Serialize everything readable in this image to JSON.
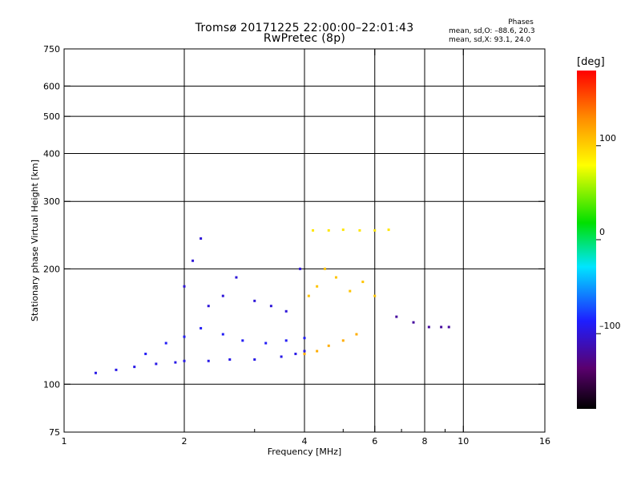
{
  "header": {
    "title_line1": "Tromsø 20171225 22:00:00–22:01:43",
    "title_line2": "RwPretec (8p)",
    "stats_title": "Phases",
    "stats_o": "mean, sd,O: –88.6, 20.3",
    "stats_x": "mean, sd,X:  93.1, 24.0"
  },
  "colorbar": {
    "unit_label": "[deg]",
    "range": [
      -180,
      180
    ],
    "tick_labels": [
      "100",
      "0",
      "–100"
    ],
    "tick_values": [
      100,
      0,
      -100
    ],
    "colormap": "rainbow (black-purple-blue-cyan-green-yellow-red)"
  },
  "chart_data": {
    "type": "scatter",
    "xlabel": "Frequency [MHz]",
    "ylabel": "Stationary phase Virtual Height [km]",
    "x_scale": "log",
    "y_scale": "log",
    "xlim": [
      1,
      16
    ],
    "ylim": [
      75,
      750
    ],
    "x_tick_labels": [
      "1",
      "2",
      "4",
      "6",
      "8",
      "10",
      "16"
    ],
    "x_tick_values": [
      1,
      2,
      4,
      6,
      8,
      10,
      16
    ],
    "x_minor_ticks": [
      3,
      5,
      7,
      9
    ],
    "y_tick_labels": [
      "75",
      "100",
      "200",
      "300",
      "400",
      "500",
      "600",
      "750"
    ],
    "y_tick_values": [
      75,
      100,
      200,
      300,
      400,
      500,
      600,
      750
    ],
    "grid": "major",
    "color_by": "phase [deg]",
    "traces": [
      {
        "description": "O-mode trace low",
        "phase_deg": -95,
        "points": [
          [
            1.2,
            107
          ],
          [
            1.35,
            109
          ],
          [
            1.5,
            111
          ],
          [
            1.7,
            113
          ],
          [
            1.9,
            114
          ],
          [
            2.0,
            115
          ],
          [
            2.3,
            115
          ],
          [
            2.6,
            116
          ],
          [
            3.0,
            116
          ],
          [
            3.5,
            118
          ],
          [
            3.8,
            120
          ],
          [
            4.0,
            122
          ]
        ]
      },
      {
        "description": "O-mode band mid",
        "phase_deg": -90,
        "points": [
          [
            1.6,
            120
          ],
          [
            1.8,
            128
          ],
          [
            2.0,
            133
          ],
          [
            2.2,
            140
          ],
          [
            2.5,
            135
          ],
          [
            2.8,
            130
          ],
          [
            3.2,
            128
          ],
          [
            3.6,
            130
          ],
          [
            4.0,
            132
          ]
        ]
      },
      {
        "description": "O-mode spread F cluster",
        "phase_deg": -100,
        "points": [
          [
            2.0,
            180
          ],
          [
            2.1,
            210
          ],
          [
            2.2,
            240
          ],
          [
            2.3,
            160
          ],
          [
            2.5,
            170
          ],
          [
            2.7,
            190
          ],
          [
            3.0,
            165
          ],
          [
            3.3,
            160
          ],
          [
            3.6,
            155
          ],
          [
            3.9,
            200
          ]
        ]
      },
      {
        "description": "X-mode trace low",
        "phase_deg": 115,
        "points": [
          [
            4.0,
            120
          ],
          [
            4.3,
            122
          ],
          [
            4.6,
            126
          ],
          [
            5.0,
            130
          ],
          [
            5.4,
            135
          ]
        ]
      },
      {
        "description": "X-mode spread cluster",
        "phase_deg": 105,
        "points": [
          [
            4.1,
            170
          ],
          [
            4.3,
            180
          ],
          [
            4.5,
            200
          ],
          [
            4.8,
            190
          ],
          [
            5.2,
            175
          ],
          [
            5.6,
            185
          ],
          [
            6.0,
            170
          ]
        ]
      },
      {
        "description": "upper trace ~250 km",
        "phase_deg": 90,
        "points": [
          [
            4.2,
            252
          ],
          [
            4.6,
            252
          ],
          [
            5.0,
            253
          ],
          [
            5.5,
            252
          ],
          [
            6.0,
            252
          ],
          [
            6.5,
            253
          ]
        ]
      },
      {
        "description": "high-frequency echoes",
        "phase_deg": -120,
        "points": [
          [
            6.8,
            150
          ],
          [
            7.5,
            145
          ],
          [
            8.2,
            141
          ],
          [
            8.8,
            141
          ],
          [
            9.2,
            141
          ]
        ]
      }
    ]
  }
}
